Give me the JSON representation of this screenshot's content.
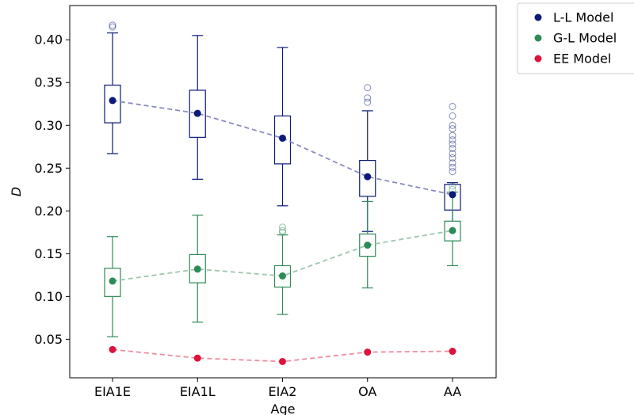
{
  "chart_data": {
    "type": "box",
    "xlabel": "Age",
    "ylabel": "D",
    "ylim": [
      0.005,
      0.44
    ],
    "yticks": [
      0.05,
      0.1,
      0.15,
      0.2,
      0.25,
      0.3,
      0.35,
      0.4
    ],
    "ytick_labels": [
      "0.05",
      "0.10",
      "0.15",
      "0.20",
      "0.25",
      "0.30",
      "0.35",
      "0.40"
    ],
    "categories": [
      "EIA1E",
      "EIA1L",
      "EIA2",
      "OA",
      "AA"
    ],
    "grid": false,
    "legend_position": "outside-top-right",
    "series": [
      {
        "name": "L-L Model",
        "color": "#0d1a7a",
        "mean_line_color": "#8a8cc4",
        "means": [
          0.329,
          0.314,
          0.285,
          0.24,
          0.219
        ],
        "boxes": [
          {
            "whisker_low": 0.267,
            "q1": 0.303,
            "q3": 0.347,
            "whisker_high": 0.408,
            "outliers": [
              0.415,
              0.417
            ]
          },
          {
            "whisker_low": 0.237,
            "q1": 0.286,
            "q3": 0.341,
            "whisker_high": 0.405,
            "outliers": []
          },
          {
            "whisker_low": 0.206,
            "q1": 0.255,
            "q3": 0.311,
            "whisker_high": 0.391,
            "outliers": []
          },
          {
            "whisker_low": 0.176,
            "q1": 0.217,
            "q3": 0.259,
            "whisker_high": 0.317,
            "outliers": [
              0.327,
              0.332,
              0.344
            ]
          },
          {
            "whisker_low": 0.173,
            "q1": 0.201,
            "q3": 0.231,
            "whisker_high": 0.233,
            "outliers": [
              0.246,
              0.251,
              0.256,
              0.262,
              0.267,
              0.273,
              0.278,
              0.283,
              0.288,
              0.296,
              0.3,
              0.311,
              0.322
            ]
          }
        ]
      },
      {
        "name": "G-L Model",
        "color": "#2e8b57",
        "mean_line_color": "#9cc7ae",
        "means": [
          0.118,
          0.132,
          0.124,
          0.16,
          0.177
        ],
        "boxes": [
          {
            "whisker_low": 0.053,
            "q1": 0.1,
            "q3": 0.133,
            "whisker_high": 0.17,
            "outliers": []
          },
          {
            "whisker_low": 0.07,
            "q1": 0.116,
            "q3": 0.149,
            "whisker_high": 0.195,
            "outliers": []
          },
          {
            "whisker_low": 0.079,
            "q1": 0.111,
            "q3": 0.136,
            "whisker_high": 0.172,
            "outliers": [
              0.175,
              0.177,
              0.181
            ]
          },
          {
            "whisker_low": 0.11,
            "q1": 0.147,
            "q3": 0.173,
            "whisker_high": 0.211,
            "outliers": []
          },
          {
            "whisker_low": 0.136,
            "q1": 0.165,
            "q3": 0.188,
            "whisker_high": 0.222,
            "outliers": [
              0.225,
              0.229
            ]
          }
        ]
      },
      {
        "name": "EE Model",
        "color": "#dc143c",
        "mean_line_color": "#ee8ca0",
        "means": [
          0.038,
          0.028,
          0.024,
          0.035,
          0.036
        ],
        "boxes": []
      }
    ]
  }
}
